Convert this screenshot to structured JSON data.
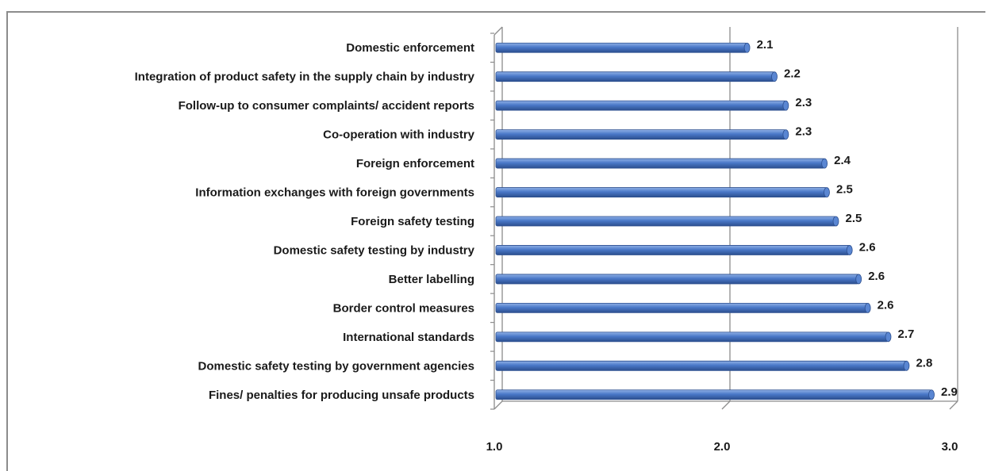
{
  "chart_data": {
    "type": "bar",
    "orientation": "horizontal",
    "title": "",
    "xlabel": "",
    "ylabel": "",
    "categories": [
      "Domestic enforcement",
      "Integration of product safety in the supply chain by industry",
      "Follow-up to consumer complaints/ accident reports",
      "Co-operation with industry",
      "Foreign enforcement",
      "Information exchanges with foreign governments",
      "Foreign safety testing",
      "Domestic safety testing by industry",
      "Better labelling",
      "Border control measures",
      "International standards",
      "Domestic safety testing by government agencies",
      "Fines/ penalties for producing unsafe products"
    ],
    "values": [
      2.11,
      2.23,
      2.28,
      2.28,
      2.45,
      2.46,
      2.5,
      2.56,
      2.6,
      2.64,
      2.73,
      2.81,
      2.92
    ],
    "value_labels": [
      "2.1",
      "2.2",
      "2.3",
      "2.3",
      "2.4",
      "2.5",
      "2.5",
      "2.6",
      "2.6",
      "2.6",
      "2.7",
      "2.8",
      "2.9"
    ],
    "xlim": [
      1.0,
      3.0
    ],
    "x_ticks": [
      "1.0",
      "2.0",
      "3.0"
    ],
    "grid": true,
    "bar_color": "#4472c4",
    "legend": "none"
  }
}
